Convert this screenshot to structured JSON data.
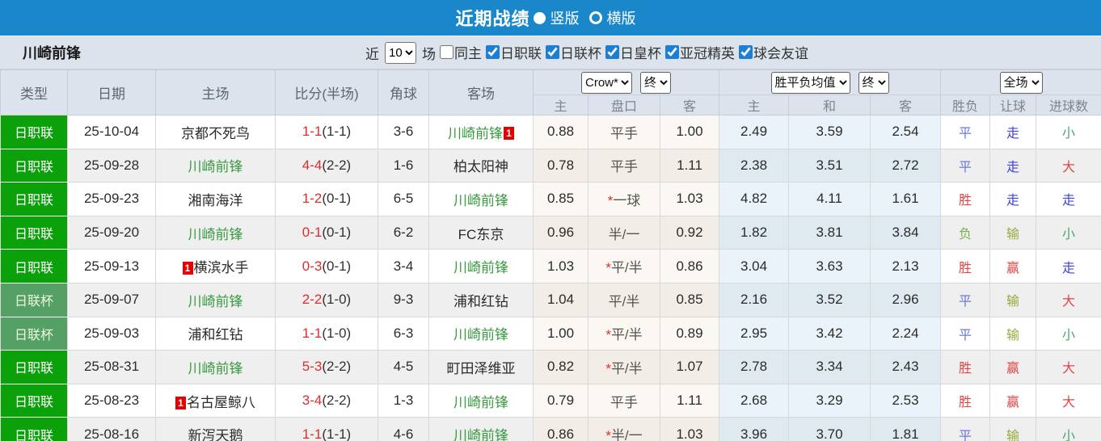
{
  "topbar": {
    "title": "近期战绩",
    "options": [
      {
        "label": "竖版",
        "selected": true
      },
      {
        "label": "横版",
        "selected": false
      }
    ]
  },
  "filter": {
    "team": "川崎前锋",
    "near_label": "近",
    "count": "10",
    "games_label": "场",
    "checkboxes": [
      {
        "label": "同主",
        "checked": false
      },
      {
        "label": "日职联",
        "checked": true
      },
      {
        "label": "日联杯",
        "checked": true
      },
      {
        "label": "日皇杯",
        "checked": true
      },
      {
        "label": "亚冠精英",
        "checked": true
      },
      {
        "label": "球会友谊",
        "checked": true
      }
    ]
  },
  "colors": {
    "topbar_blue": "#1a87cb",
    "header_bg": "#dce3ec",
    "league_green": "#0ba10b",
    "cup_green": "#55a065",
    "team_green": "#3a9b41",
    "score_red": "#e02c2c",
    "badge_red": "#e60000",
    "win_red": "#e04545",
    "draw_blue": "#6b77d8",
    "push_blue": "#4343d8",
    "lose_green": "#7fae4f",
    "handicap_lose_green": "#98a93c",
    "small_green": "#4ea36d"
  },
  "table": {
    "header": {
      "cols": [
        "类型",
        "日期",
        "主场",
        "比分(半场)",
        "角球",
        "客场"
      ],
      "sub": [
        "主",
        "盘口",
        "客",
        "主",
        "和",
        "客",
        "胜负",
        "让球",
        "进球数"
      ]
    },
    "selects": {
      "company": "Crow*",
      "company_period": "终",
      "avg": "胜平负均值",
      "avg_period": "终",
      "scope": "全场"
    },
    "rows": [
      {
        "league": "日职联",
        "cup": false,
        "date": "25-10-04",
        "home": {
          "name": "京都不死鸟"
        },
        "score": "1-1",
        "half": "(1-1)",
        "corner": "3-6",
        "away": {
          "name": "川崎前锋",
          "green": true,
          "badge": "1",
          "badge_pos": "after"
        },
        "crow_home": "0.88",
        "handicap": "平手",
        "star": false,
        "crow_away": "1.00",
        "avg": [
          "2.49",
          "3.59",
          "2.54"
        ],
        "outcomes": [
          {
            "t": "平",
            "c": "b"
          },
          {
            "t": "走",
            "c": "p"
          },
          {
            "t": "小",
            "c": "s"
          }
        ]
      },
      {
        "league": "日职联",
        "cup": false,
        "date": "25-09-28",
        "home": {
          "name": "川崎前锋",
          "green": true
        },
        "score": "4-4",
        "half": "(2-2)",
        "corner": "1-6",
        "away": {
          "name": "柏太阳神"
        },
        "crow_home": "0.78",
        "handicap": "平手",
        "star": false,
        "crow_away": "1.11",
        "avg": [
          "2.38",
          "3.51",
          "2.72"
        ],
        "outcomes": [
          {
            "t": "平",
            "c": "b"
          },
          {
            "t": "走",
            "c": "p"
          },
          {
            "t": "大",
            "c": "r"
          }
        ]
      },
      {
        "league": "日职联",
        "cup": false,
        "date": "25-09-23",
        "home": {
          "name": "湘南海洋"
        },
        "score": "1-2",
        "half": "(0-1)",
        "corner": "6-5",
        "away": {
          "name": "川崎前锋",
          "green": true
        },
        "crow_home": "0.85",
        "handicap": "一球",
        "star": true,
        "crow_away": "1.03",
        "avg": [
          "4.82",
          "4.11",
          "1.61"
        ],
        "outcomes": [
          {
            "t": "胜",
            "c": "r"
          },
          {
            "t": "走",
            "c": "p"
          },
          {
            "t": "走",
            "c": "p"
          }
        ]
      },
      {
        "league": "日职联",
        "cup": false,
        "date": "25-09-20",
        "home": {
          "name": "川崎前锋",
          "green": true
        },
        "score": "0-1",
        "half": "(0-1)",
        "corner": "6-2",
        "away": {
          "name": "FC东京"
        },
        "crow_home": "0.96",
        "handicap": "半/一",
        "star": false,
        "crow_away": "0.92",
        "avg": [
          "1.82",
          "3.81",
          "3.84"
        ],
        "outcomes": [
          {
            "t": "负",
            "c": "g"
          },
          {
            "t": "输",
            "c": "y"
          },
          {
            "t": "小",
            "c": "s"
          }
        ]
      },
      {
        "league": "日职联",
        "cup": false,
        "date": "25-09-13",
        "home": {
          "name": "横滨水手",
          "badge": "1",
          "badge_pos": "before"
        },
        "score": "0-3",
        "half": "(0-1)",
        "corner": "3-4",
        "away": {
          "name": "川崎前锋",
          "green": true
        },
        "crow_home": "1.03",
        "handicap": "平/半",
        "star": true,
        "crow_away": "0.86",
        "avg": [
          "3.04",
          "3.63",
          "2.13"
        ],
        "outcomes": [
          {
            "t": "胜",
            "c": "r"
          },
          {
            "t": "赢",
            "c": "r"
          },
          {
            "t": "走",
            "c": "p"
          }
        ]
      },
      {
        "league": "日联杯",
        "cup": true,
        "date": "25-09-07",
        "home": {
          "name": "川崎前锋",
          "green": true
        },
        "score": "2-2",
        "half": "(1-0)",
        "corner": "9-3",
        "away": {
          "name": "浦和红钻"
        },
        "crow_home": "1.04",
        "handicap": "平/半",
        "star": false,
        "crow_away": "0.85",
        "avg": [
          "2.16",
          "3.52",
          "2.96"
        ],
        "outcomes": [
          {
            "t": "平",
            "c": "b"
          },
          {
            "t": "输",
            "c": "y"
          },
          {
            "t": "大",
            "c": "r"
          }
        ]
      },
      {
        "league": "日联杯",
        "cup": true,
        "date": "25-09-03",
        "home": {
          "name": "浦和红钻"
        },
        "score": "1-1",
        "half": "(1-0)",
        "corner": "6-3",
        "away": {
          "name": "川崎前锋",
          "green": true
        },
        "crow_home": "1.00",
        "handicap": "平/半",
        "star": true,
        "crow_away": "0.89",
        "avg": [
          "2.95",
          "3.42",
          "2.24"
        ],
        "outcomes": [
          {
            "t": "平",
            "c": "b"
          },
          {
            "t": "输",
            "c": "y"
          },
          {
            "t": "小",
            "c": "s"
          }
        ]
      },
      {
        "league": "日职联",
        "cup": false,
        "date": "25-08-31",
        "home": {
          "name": "川崎前锋",
          "green": true
        },
        "score": "5-3",
        "half": "(2-2)",
        "corner": "4-5",
        "away": {
          "name": "町田泽维亚"
        },
        "crow_home": "0.82",
        "handicap": "平/半",
        "star": true,
        "crow_away": "1.07",
        "avg": [
          "2.78",
          "3.34",
          "2.43"
        ],
        "outcomes": [
          {
            "t": "胜",
            "c": "r"
          },
          {
            "t": "赢",
            "c": "r"
          },
          {
            "t": "大",
            "c": "r"
          }
        ]
      },
      {
        "league": "日职联",
        "cup": false,
        "date": "25-08-23",
        "home": {
          "name": "名古屋鲸八",
          "badge": "1",
          "badge_pos": "before"
        },
        "score": "3-4",
        "half": "(2-2)",
        "corner": "1-3",
        "away": {
          "name": "川崎前锋",
          "green": true
        },
        "crow_home": "0.79",
        "handicap": "平手",
        "star": false,
        "crow_away": "1.11",
        "avg": [
          "2.68",
          "3.29",
          "2.53"
        ],
        "outcomes": [
          {
            "t": "胜",
            "c": "r"
          },
          {
            "t": "赢",
            "c": "r"
          },
          {
            "t": "大",
            "c": "r"
          }
        ]
      },
      {
        "league": "日职联",
        "cup": false,
        "date": "25-08-16",
        "home": {
          "name": "新泻天鹅"
        },
        "score": "1-1",
        "half": "(1-1)",
        "corner": "4-6",
        "away": {
          "name": "川崎前锋",
          "green": true
        },
        "crow_home": "0.86",
        "handicap": "半/一",
        "star": true,
        "crow_away": "1.03",
        "avg": [
          "3.96",
          "3.70",
          "1.81"
        ],
        "outcomes": [
          {
            "t": "平",
            "c": "b"
          },
          {
            "t": "输",
            "c": "y"
          },
          {
            "t": "小",
            "c": "s"
          }
        ]
      }
    ]
  }
}
